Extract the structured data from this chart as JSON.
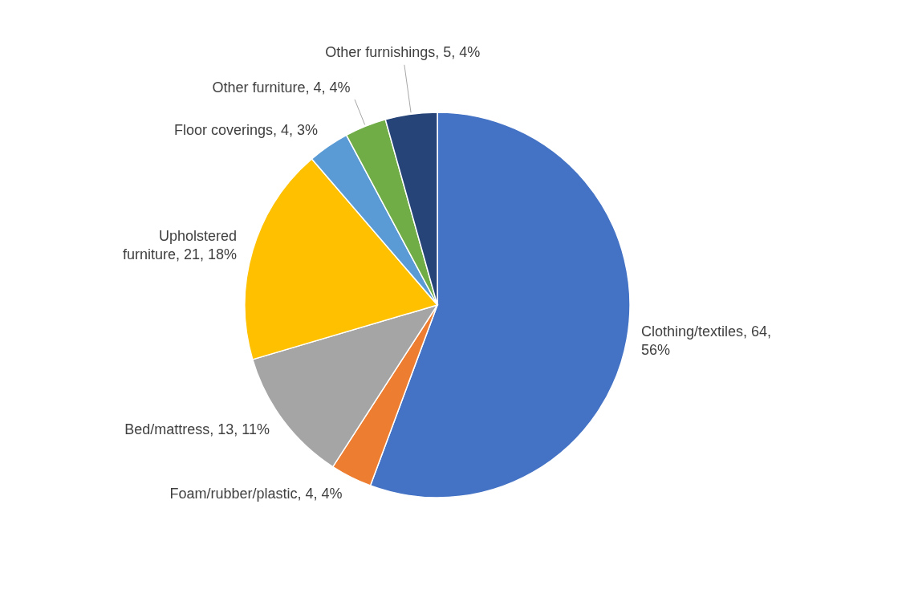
{
  "chart_data": {
    "type": "pie",
    "categories": [
      "Clothing/textiles",
      "Foam/rubber/plastic",
      "Bed/mattress",
      "Upholstered furniture",
      "Floor coverings",
      "Other furniture",
      "Other furnishings"
    ],
    "values": [
      64,
      4,
      13,
      21,
      4,
      4,
      5
    ],
    "value_labels": [
      "64, 56%",
      "4, 4%",
      "13, 11%",
      "21, 18%",
      "4, 3%",
      "4, 4%",
      "5, 4%"
    ],
    "colors": [
      "#4472c4",
      "#ed7d31",
      "#a5a5a5",
      "#ffc000",
      "#5b9bd5",
      "#70ad47",
      "#264478"
    ],
    "legend": false
  }
}
